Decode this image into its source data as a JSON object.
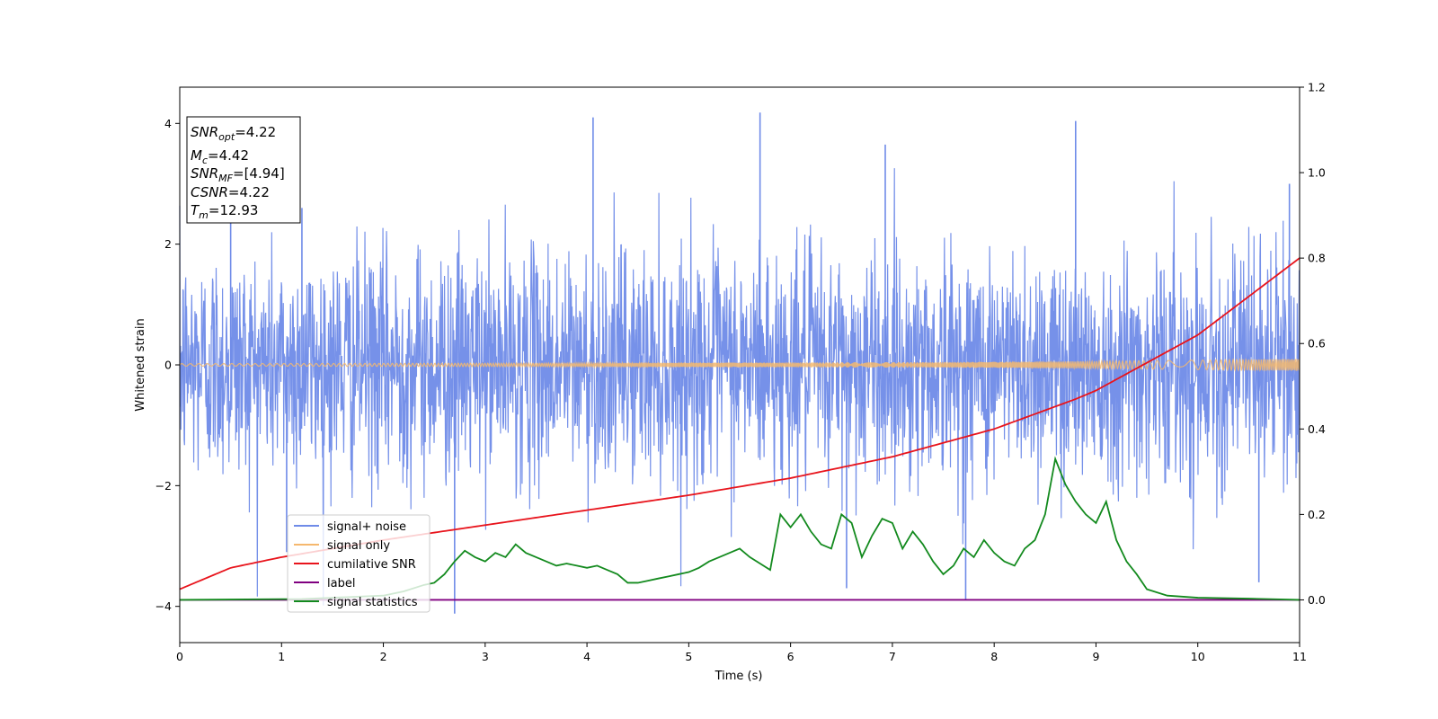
{
  "chart_data": {
    "type": "line",
    "xlabel": "Time (s)",
    "ylabel": "Whitened strain",
    "xlim": [
      0,
      11
    ],
    "ylim_left": [
      -4.6,
      4.6
    ],
    "ylim_right": [
      -0.1,
      1.2
    ],
    "x_ticks": [
      "0",
      "1",
      "2",
      "3",
      "4",
      "5",
      "6",
      "7",
      "8",
      "9",
      "10",
      "11"
    ],
    "y_left_ticks": [
      {
        "value": 4,
        "label": "4"
      },
      {
        "value": 2,
        "label": "2"
      },
      {
        "value": 0,
        "label": "0"
      },
      {
        "value": -2,
        "label": "−2"
      },
      {
        "value": -4,
        "label": "−4"
      }
    ],
    "y_right_ticks": [
      "0.0",
      "0.2",
      "0.4",
      "0.6",
      "0.8",
      "1.0",
      "1.2"
    ],
    "info_box": [
      {
        "var": "SNR",
        "sub": "opt",
        "value": "=4.22"
      },
      {
        "var": "M",
        "sub": "c",
        "value": "=4.42"
      },
      {
        "var": "SNR",
        "sub": "MF",
        "value": "=[4.94]"
      },
      {
        "var": "CSNR",
        "sub": "",
        "value": "=4.22"
      },
      {
        "var": "T",
        "sub": "m",
        "value": "=12.93"
      }
    ],
    "legend_position": "lower-left",
    "series": [
      {
        "name": "signal+ noise",
        "axis": "left",
        "color": "#6f8be8",
        "description_values": "random noise about 0 with std ~1, peaks near +4.2 and -4.1"
      },
      {
        "name": "signal only",
        "axis": "left",
        "color": "#f5b86e",
        "amplitude_x": [
          0,
          4,
          8,
          9,
          10,
          11
        ],
        "amplitude": [
          0.02,
          0.03,
          0.05,
          0.06,
          0.08,
          0.1
        ]
      },
      {
        "name": "cumilative SNR",
        "axis": "right",
        "color": "#e8141c",
        "x": [
          0,
          0.5,
          1,
          2,
          3,
          4,
          5,
          6,
          7,
          8,
          8.8,
          9,
          10,
          11
        ],
        "y": [
          0.025,
          0.075,
          0.1,
          0.14,
          0.175,
          0.21,
          0.245,
          0.285,
          0.335,
          0.4,
          0.47,
          0.49,
          0.62,
          0.8
        ]
      },
      {
        "name": "label",
        "axis": "right",
        "color": "#800080",
        "x": [
          0,
          11
        ],
        "y": [
          0,
          0
        ]
      },
      {
        "name": "signal statistics",
        "axis": "right",
        "color": "#138a1e",
        "x": [
          0,
          1.2,
          2,
          2.2,
          2.4,
          2.5,
          2.6,
          2.7,
          2.8,
          2.9,
          3.0,
          3.1,
          3.2,
          3.3,
          3.4,
          3.5,
          3.6,
          3.7,
          3.8,
          3.9,
          4.0,
          4.1,
          4.2,
          4.3,
          4.4,
          4.5,
          4.6,
          4.7,
          4.8,
          4.9,
          5.0,
          5.1,
          5.2,
          5.3,
          5.4,
          5.5,
          5.6,
          5.7,
          5.8,
          5.9,
          6.0,
          6.1,
          6.2,
          6.3,
          6.4,
          6.5,
          6.6,
          6.7,
          6.8,
          6.9,
          7.0,
          7.1,
          7.2,
          7.3,
          7.4,
          7.5,
          7.6,
          7.7,
          7.8,
          7.9,
          8.0,
          8.1,
          8.2,
          8.3,
          8.4,
          8.5,
          8.6,
          8.7,
          8.8,
          8.9,
          9.0,
          9.1,
          9.2,
          9.3,
          9.4,
          9.5,
          9.7,
          10.0,
          10.5,
          11.0
        ],
        "y": [
          0.0,
          0.002,
          0.01,
          0.02,
          0.035,
          0.04,
          0.06,
          0.09,
          0.115,
          0.1,
          0.09,
          0.11,
          0.1,
          0.13,
          0.11,
          0.1,
          0.09,
          0.08,
          0.085,
          0.08,
          0.075,
          0.08,
          0.07,
          0.06,
          0.04,
          0.04,
          0.045,
          0.05,
          0.055,
          0.06,
          0.065,
          0.075,
          0.09,
          0.1,
          0.11,
          0.12,
          0.1,
          0.085,
          0.07,
          0.2,
          0.17,
          0.2,
          0.16,
          0.13,
          0.12,
          0.2,
          0.18,
          0.1,
          0.15,
          0.19,
          0.18,
          0.12,
          0.16,
          0.13,
          0.09,
          0.06,
          0.08,
          0.12,
          0.1,
          0.14,
          0.11,
          0.09,
          0.08,
          0.12,
          0.14,
          0.2,
          0.33,
          0.27,
          0.23,
          0.2,
          0.18,
          0.23,
          0.14,
          0.09,
          0.06,
          0.025,
          0.01,
          0.005,
          0.003,
          0.0
        ]
      }
    ]
  }
}
